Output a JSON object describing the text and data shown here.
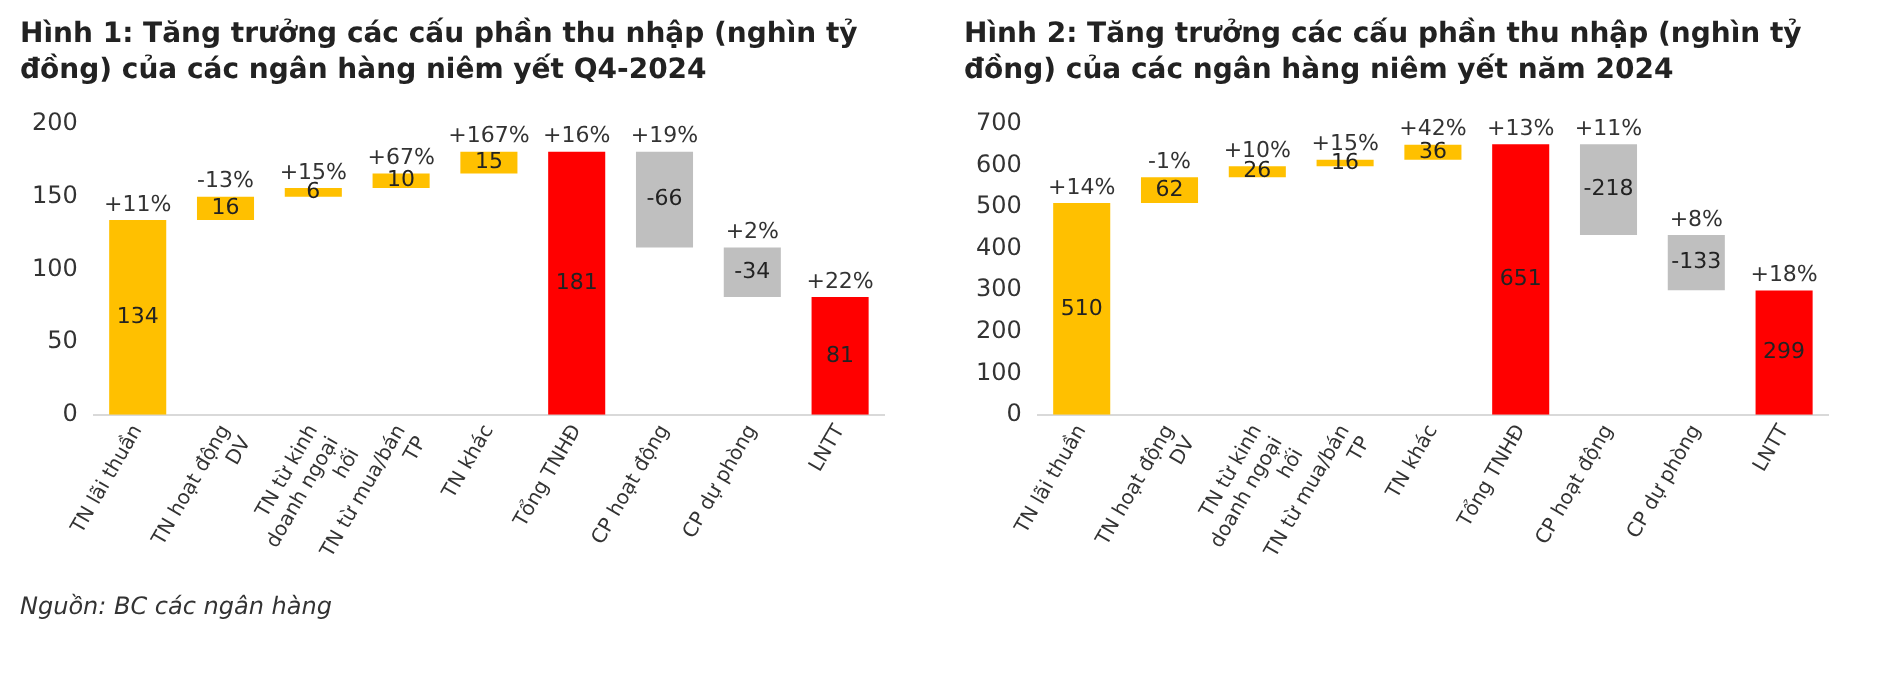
{
  "chart_data": [
    {
      "type": "bar",
      "title": "Hình 1: Tăng trưởng các cấu phần thu nhập (nghìn tỷ đồng) của các ngân hàng niêm yết Q4-2024",
      "categories": [
        "TN lãi thuần",
        "TN hoạt động DV",
        "TN từ kinh doanh ngoại hối",
        "TN từ mua/bán TP",
        "TN khác",
        "Tổng TNHĐ",
        "CP hoạt động",
        "CP dự phòng",
        "LNTT"
      ],
      "values": [
        134,
        16,
        6,
        10,
        15,
        181,
        -66,
        -34,
        81
      ],
      "base": [
        0,
        134,
        150,
        156,
        166,
        0,
        181,
        115,
        0
      ],
      "colors": [
        "#ffc000",
        "#ffc000",
        "#ffc000",
        "#ffc000",
        "#ffc000",
        "#ff0000",
        "#bfbfbf",
        "#bfbfbf",
        "#ff0000"
      ],
      "data_labels": true,
      "ylim": [
        0,
        200
      ],
      "yticks": [
        0,
        50,
        100,
        150,
        200
      ],
      "grid": false,
      "annotations": [
        {
          "text": "+11%",
          "x": "TN lãi thuần",
          "y": 134
        },
        {
          "text": "-13%",
          "x": "TN hoạt động DV",
          "y": 150
        },
        {
          "text": "+15%",
          "x": "TN từ kinh doanh ngoại hối",
          "y": 156
        },
        {
          "text": "+67%",
          "x": "TN từ mua/bán TP",
          "y": 166
        },
        {
          "text": "+167%",
          "x": "TN khác",
          "y": 181
        },
        {
          "text": "+16%",
          "x": "Tổng TNHĐ",
          "y": 181
        },
        {
          "text": "+19%",
          "x": "CP hoạt động",
          "y": 181
        },
        {
          "text": "+2%",
          "x": "CP dự phòng",
          "y": 115
        },
        {
          "text": "+22%",
          "x": "LNTT",
          "y": 81
        },
        "Nguồn: BC các ngân hàng"
      ]
    },
    {
      "type": "bar",
      "title": "Hình 2: Tăng trưởng các cấu phần thu nhập (nghìn tỷ đồng) của các ngân hàng niêm yết năm 2024",
      "categories": [
        "TN lãi thuần",
        "TN hoạt động DV",
        "TN từ kinh doanh ngoại hối",
        "TN từ mua/bán TP",
        "TN khác",
        "Tổng TNHĐ",
        "CP hoạt động",
        "CP dự phòng",
        "LNTT"
      ],
      "values": [
        510,
        62,
        26,
        16,
        36,
        651,
        -218,
        -133,
        299
      ],
      "base": [
        0,
        510,
        572,
        598,
        614,
        0,
        651,
        433,
        0
      ],
      "colors": [
        "#ffc000",
        "#ffc000",
        "#ffc000",
        "#ffc000",
        "#ffc000",
        "#ff0000",
        "#bfbfbf",
        "#bfbfbf",
        "#ff0000"
      ],
      "data_labels": true,
      "ylim": [
        0,
        700
      ],
      "yticks": [
        0,
        100,
        200,
        300,
        400,
        500,
        600,
        700
      ],
      "grid": false,
      "annotations": [
        {
          "text": "+14%",
          "x": "TN lãi thuần",
          "y": 510
        },
        {
          "text": "-1%",
          "x": "TN hoạt động DV",
          "y": 572
        },
        {
          "text": "+10%",
          "x": "TN từ kinh doanh ngoại hối",
          "y": 598
        },
        {
          "text": "+15%",
          "x": "TN từ mua/bán TP",
          "y": 614
        },
        {
          "text": "+42%",
          "x": "TN khác",
          "y": 650
        },
        {
          "text": "+13%",
          "x": "Tổng TNHĐ",
          "y": 651
        },
        {
          "text": "+11%",
          "x": "CP hoạt động",
          "y": 651
        },
        {
          "text": "+8%",
          "x": "CP dự phòng",
          "y": 433
        },
        {
          "text": "+18%",
          "x": "LNTT",
          "y": 299
        }
      ]
    }
  ]
}
